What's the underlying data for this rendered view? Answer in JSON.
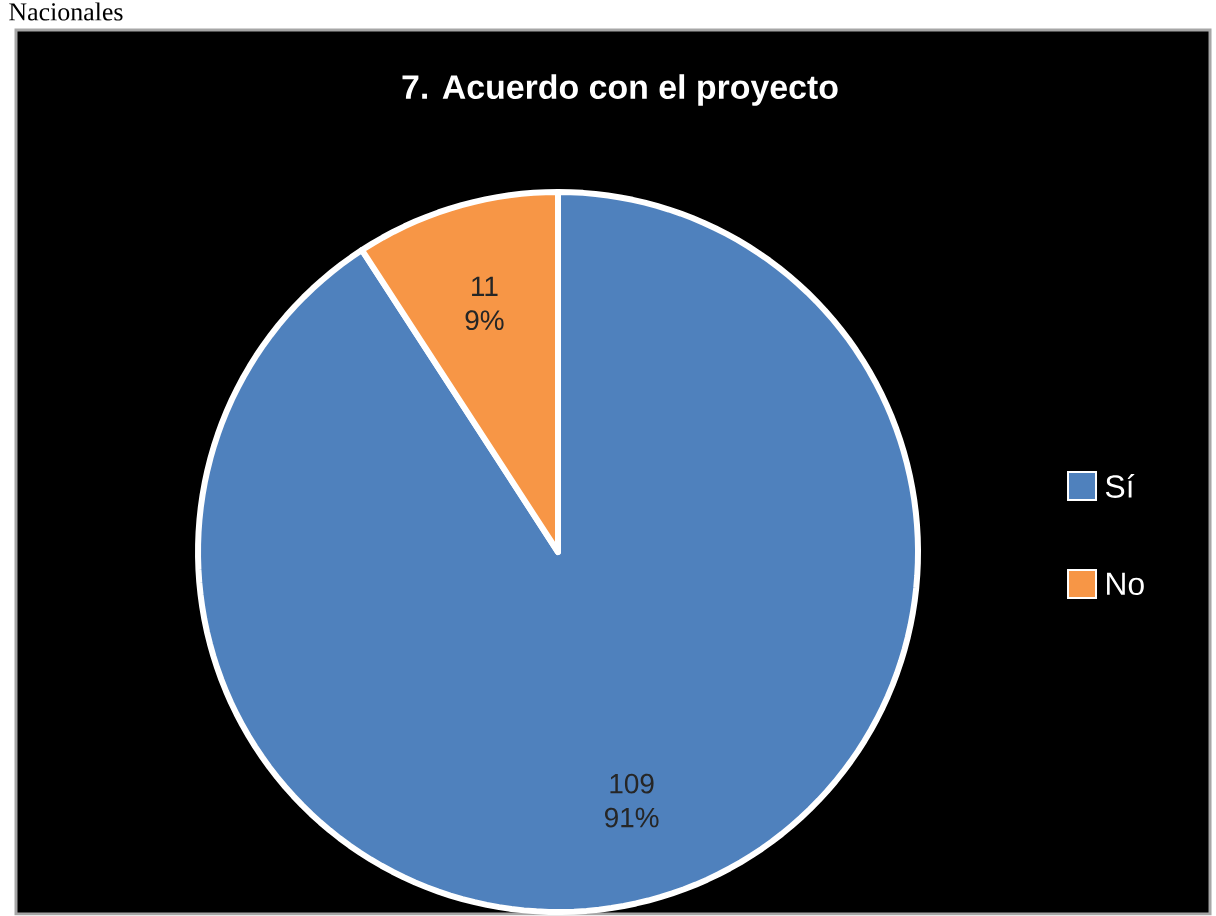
{
  "chart_data": {
    "type": "pie",
    "title": "7. Acuerdo con el proyecto",
    "categories": [
      "Sí",
      "No"
    ],
    "values": [
      109,
      11
    ],
    "colors": [
      "#4f81bd",
      "#f79646"
    ],
    "value_labels": [
      "109 91%",
      "11 9%"
    ],
    "legend": "right",
    "annotations": [
      "Nacionales"
    ]
  }
}
